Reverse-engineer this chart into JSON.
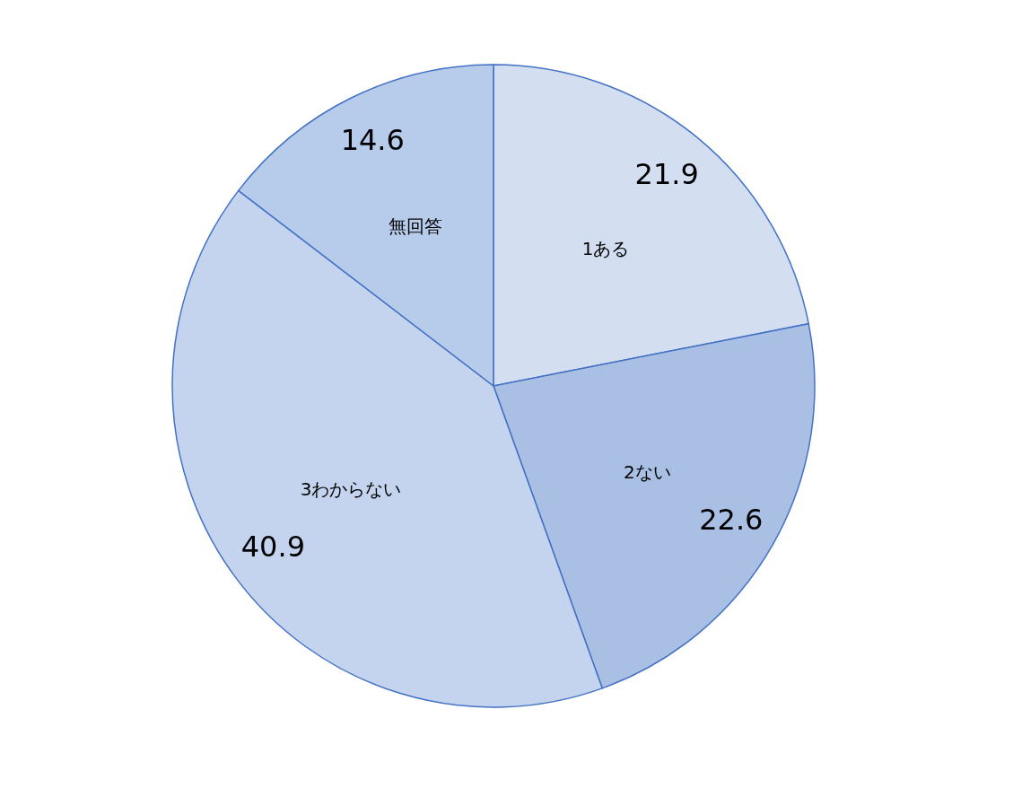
{
  "chart_data": {
    "type": "pie",
    "categories": [
      "1ある",
      "2ない",
      "3わからない",
      "無回答"
    ],
    "values": [
      21.9,
      22.6,
      40.9,
      14.6
    ],
    "colors": [
      "#d3def1",
      "#a9bfe3",
      "#c4d4ee",
      "#b7cbea"
    ],
    "data_labels": true,
    "legend": false
  }
}
